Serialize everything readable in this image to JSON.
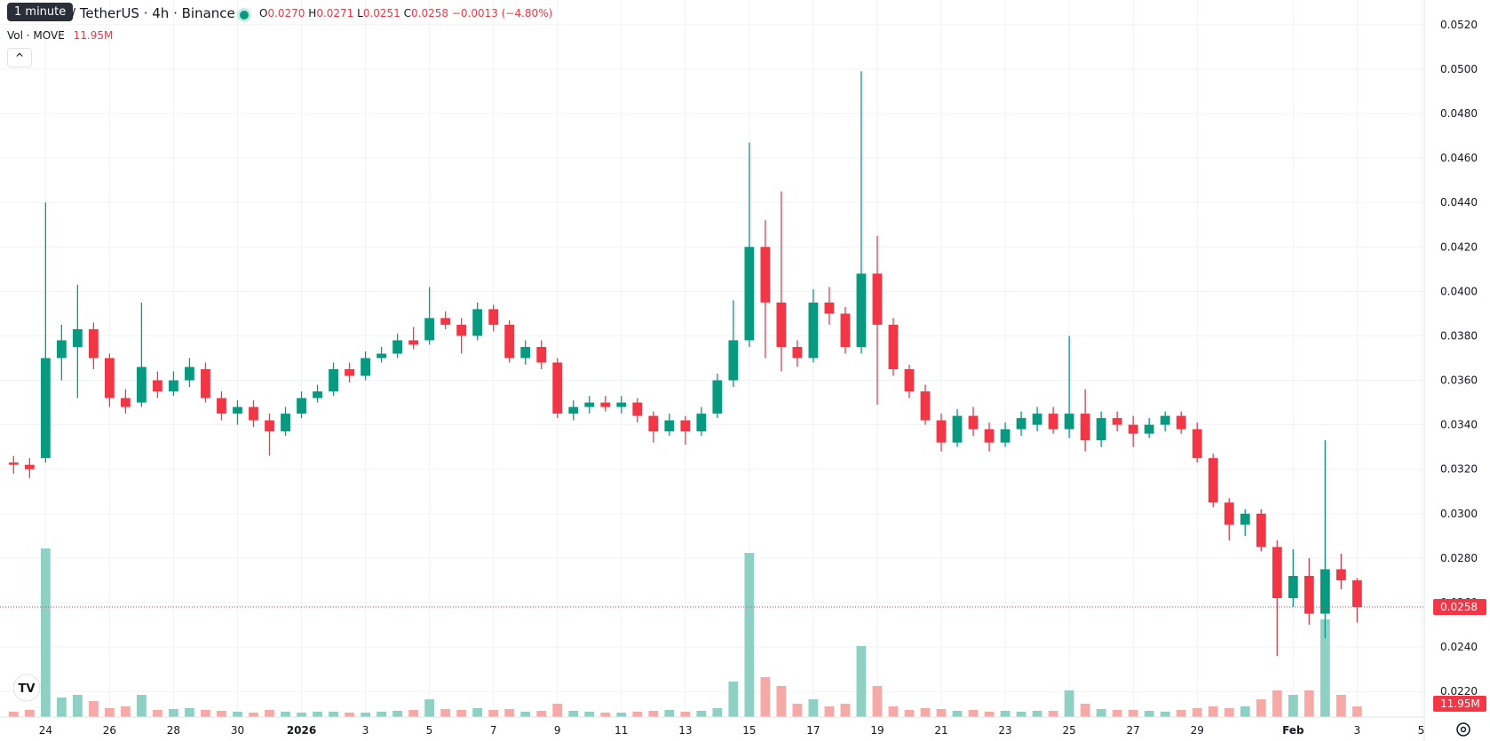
{
  "header": {
    "tooltip": "1 minute",
    "symbol": "/ TetherUS · 4h · Binance",
    "o_label": "O",
    "open": "0.0270",
    "h_label": "H",
    "high": "0.0271",
    "l_label": "L",
    "low": "0.0251",
    "c_label": "C",
    "close": "0.0258",
    "change": "−0.0013 (−4.80%)",
    "vol_label": "Vol · MOVE",
    "vol_value": "11.95M"
  },
  "chart_data": {
    "type": "candlestick",
    "up_color": "#089981",
    "down_color": "#f23645",
    "up_volume_color": "#8fd0c4",
    "down_volume_color": "#f7a9a7",
    "grid": true,
    "xlim": [
      -0.85,
      88.2
    ],
    "xticks": [
      {
        "value": 2,
        "label": "24"
      },
      {
        "value": 6,
        "label": "26"
      },
      {
        "value": 10,
        "label": "28"
      },
      {
        "value": 14,
        "label": "30"
      },
      {
        "value": 18,
        "label": "2026"
      },
      {
        "value": 22,
        "label": "3"
      },
      {
        "value": 26,
        "label": "5"
      },
      {
        "value": 30,
        "label": "7"
      },
      {
        "value": 34,
        "label": "9"
      },
      {
        "value": 38,
        "label": "11"
      },
      {
        "value": 42,
        "label": "13"
      },
      {
        "value": 46,
        "label": "15"
      },
      {
        "value": 50,
        "label": "17"
      },
      {
        "value": 54,
        "label": "19"
      },
      {
        "value": 58,
        "label": "21"
      },
      {
        "value": 62,
        "label": "23"
      },
      {
        "value": 66,
        "label": "25"
      },
      {
        "value": 70,
        "label": "27"
      },
      {
        "value": 74,
        "label": "29"
      },
      {
        "value": 80,
        "label": "Feb"
      },
      {
        "value": 84,
        "label": "3"
      },
      {
        "value": 88,
        "label": "5"
      }
    ],
    "ylim": [
      0.02085,
      0.05311
    ],
    "yticks": [
      {
        "value": 0.022,
        "label": "0.0220"
      },
      {
        "value": 0.024,
        "label": "0.0240"
      },
      {
        "value": 0.026,
        "label": "0.0260"
      },
      {
        "value": 0.028,
        "label": "0.0280"
      },
      {
        "value": 0.03,
        "label": "0.0300"
      },
      {
        "value": 0.032,
        "label": "0.0320"
      },
      {
        "value": 0.034,
        "label": "0.0340"
      },
      {
        "value": 0.036,
        "label": "0.0360"
      },
      {
        "value": 0.038,
        "label": "0.0380"
      },
      {
        "value": 0.04,
        "label": "0.0400"
      },
      {
        "value": 0.042,
        "label": "0.0420"
      },
      {
        "value": 0.044,
        "label": "0.0440"
      },
      {
        "value": 0.046,
        "label": "0.0460"
      },
      {
        "value": 0.048,
        "label": "0.0480"
      },
      {
        "value": 0.05,
        "label": "0.0500"
      },
      {
        "value": 0.052,
        "label": "0.0520"
      }
    ],
    "volume_lim": [
      0,
      200
    ],
    "open": [
      0.0323,
      0.0322,
      0.0325,
      0.037,
      0.0375,
      0.0383,
      0.037,
      0.0352,
      0.035,
      0.036,
      0.0355,
      0.036,
      0.0365,
      0.0352,
      0.0345,
      0.0348,
      0.0342,
      0.0337,
      0.0345,
      0.0352,
      0.0355,
      0.0365,
      0.0362,
      0.037,
      0.0372,
      0.0378,
      0.0378,
      0.0388,
      0.0385,
      0.038,
      0.0392,
      0.0385,
      0.037,
      0.0375,
      0.0368,
      0.0345,
      0.0348,
      0.035,
      0.0348,
      0.035,
      0.0344,
      0.0337,
      0.0342,
      0.0337,
      0.0345,
      0.036,
      0.0378,
      0.042,
      0.0395,
      0.0375,
      0.037,
      0.0395,
      0.039,
      0.0375,
      0.0408,
      0.0385,
      0.0365,
      0.0355,
      0.0342,
      0.0332,
      0.0344,
      0.0338,
      0.0332,
      0.0338,
      0.034,
      0.0345,
      0.0338,
      0.0345,
      0.0333,
      0.0343,
      0.034,
      0.0336,
      0.034,
      0.0344,
      0.0338,
      0.0325,
      0.0305,
      0.0295,
      0.03,
      0.0285,
      0.0262,
      0.0272,
      0.0255,
      0.0275,
      0.027
    ],
    "high": [
      0.0326,
      0.0325,
      0.044,
      0.0385,
      0.0403,
      0.0386,
      0.0372,
      0.0356,
      0.0395,
      0.0364,
      0.0364,
      0.037,
      0.0368,
      0.0355,
      0.0351,
      0.0351,
      0.0345,
      0.0348,
      0.0355,
      0.0358,
      0.0368,
      0.0368,
      0.0373,
      0.0375,
      0.0381,
      0.0384,
      0.0402,
      0.0391,
      0.0388,
      0.0395,
      0.0394,
      0.0387,
      0.0378,
      0.0378,
      0.037,
      0.0351,
      0.0353,
      0.0353,
      0.0353,
      0.0352,
      0.0346,
      0.0345,
      0.0344,
      0.0348,
      0.0363,
      0.0396,
      0.0467,
      0.0432,
      0.0445,
      0.0378,
      0.0401,
      0.0402,
      0.0393,
      0.0499,
      0.0425,
      0.0388,
      0.0367,
      0.0358,
      0.0345,
      0.0347,
      0.0348,
      0.0341,
      0.0341,
      0.0346,
      0.0348,
      0.0348,
      0.038,
      0.0356,
      0.0346,
      0.0346,
      0.0344,
      0.0343,
      0.0346,
      0.0346,
      0.0341,
      0.0327,
      0.0307,
      0.0302,
      0.0302,
      0.0288,
      0.0284,
      0.028,
      0.0333,
      0.0282,
      0.0271
    ],
    "low": [
      0.0318,
      0.0316,
      0.0323,
      0.036,
      0.0352,
      0.0365,
      0.0348,
      0.0345,
      0.0348,
      0.0352,
      0.0353,
      0.0357,
      0.035,
      0.0342,
      0.034,
      0.0339,
      0.0326,
      0.0335,
      0.0343,
      0.035,
      0.0353,
      0.0359,
      0.036,
      0.0368,
      0.037,
      0.0374,
      0.0376,
      0.0383,
      0.0372,
      0.0378,
      0.0382,
      0.0368,
      0.0367,
      0.0365,
      0.0343,
      0.0342,
      0.0345,
      0.0346,
      0.0345,
      0.0341,
      0.0332,
      0.0335,
      0.0331,
      0.0335,
      0.0343,
      0.0357,
      0.0375,
      0.037,
      0.0364,
      0.0366,
      0.0368,
      0.0385,
      0.0372,
      0.0372,
      0.0349,
      0.0362,
      0.0352,
      0.034,
      0.0328,
      0.033,
      0.0335,
      0.0328,
      0.033,
      0.0335,
      0.0337,
      0.0336,
      0.0334,
      0.0328,
      0.033,
      0.0337,
      0.033,
      0.0334,
      0.0337,
      0.0336,
      0.0323,
      0.0303,
      0.0288,
      0.029,
      0.0283,
      0.0236,
      0.0258,
      0.025,
      0.0244,
      0.0266,
      0.0251
    ],
    "close": [
      0.0322,
      0.032,
      0.037,
      0.0378,
      0.0383,
      0.037,
      0.0352,
      0.0348,
      0.0366,
      0.0355,
      0.036,
      0.0366,
      0.0352,
      0.0345,
      0.0348,
      0.0342,
      0.0337,
      0.0345,
      0.0352,
      0.0355,
      0.0365,
      0.0362,
      0.037,
      0.0372,
      0.0378,
      0.0376,
      0.0388,
      0.0385,
      0.038,
      0.0392,
      0.0385,
      0.037,
      0.0375,
      0.0368,
      0.0345,
      0.0348,
      0.035,
      0.0348,
      0.035,
      0.0344,
      0.0337,
      0.0342,
      0.0337,
      0.0345,
      0.036,
      0.0378,
      0.042,
      0.0395,
      0.0375,
      0.037,
      0.0395,
      0.039,
      0.0375,
      0.0408,
      0.0385,
      0.0365,
      0.0355,
      0.0342,
      0.0332,
      0.0344,
      0.0338,
      0.0332,
      0.0338,
      0.0343,
      0.0345,
      0.0338,
      0.0345,
      0.0333,
      0.0343,
      0.034,
      0.0336,
      0.034,
      0.0344,
      0.0338,
      0.0325,
      0.0305,
      0.0295,
      0.03,
      0.0285,
      0.0262,
      0.0272,
      0.0255,
      0.0275,
      0.027,
      0.0258
    ],
    "volume": [
      6,
      8,
      190,
      22,
      25,
      18,
      10,
      12,
      25,
      8,
      9,
      10,
      8,
      7,
      6,
      5,
      8,
      6,
      5,
      6,
      6,
      5,
      5,
      6,
      7,
      8,
      20,
      9,
      8,
      10,
      8,
      9,
      6,
      7,
      15,
      7,
      6,
      5,
      5,
      6,
      7,
      8,
      6,
      7,
      10,
      40,
      185,
      45,
      35,
      15,
      20,
      12,
      15,
      80,
      35,
      12,
      8,
      10,
      9,
      7,
      8,
      6,
      7,
      6,
      7,
      7,
      30,
      15,
      9,
      8,
      8,
      7,
      6,
      8,
      10,
      12,
      10,
      12,
      20,
      30,
      25,
      30,
      110,
      25,
      11.95
    ]
  }
}
